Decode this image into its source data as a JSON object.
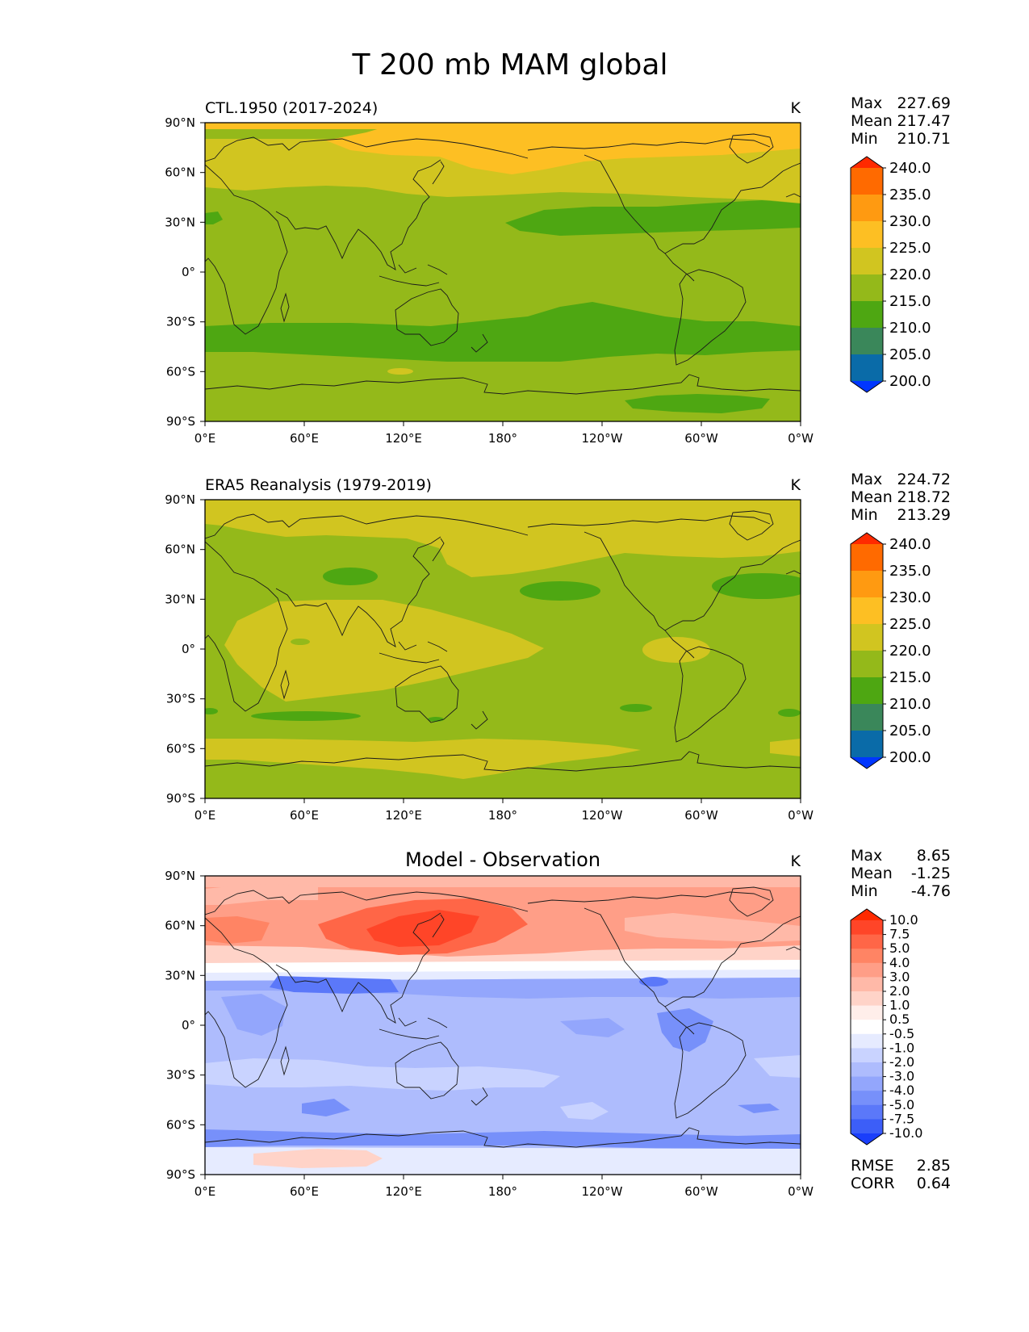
{
  "figure": {
    "title": "T 200 mb MAM global"
  },
  "axes": {
    "lat_labels": [
      "90°N",
      "60°N",
      "30°N",
      "0°",
      "30°S",
      "60°S",
      "90°S"
    ],
    "lon_labels": [
      "0°E",
      "60°E",
      "120°E",
      "180°",
      "120°W",
      "60°W",
      "0°W"
    ]
  },
  "panels": [
    {
      "id": "model",
      "title": "CTL.1950 (2017-2024)",
      "title_position": "left",
      "units": "K",
      "stats": [
        {
          "label": "Max",
          "value": "227.69"
        },
        {
          "label": "Mean",
          "value": "217.47"
        },
        {
          "label": "Min",
          "value": "210.71"
        }
      ],
      "colorbar": {
        "labels": [
          "240.0",
          "235.0",
          "230.0",
          "225.0",
          "220.0",
          "215.0",
          "210.0",
          "205.0",
          "200.0"
        ],
        "colors": [
          "#ff2a00",
          "#ff6a00",
          "#ff9a11",
          "#fdbf23",
          "#d1c520",
          "#94b91a",
          "#4ea712",
          "#3a875a",
          "#0a6ba8",
          "#0036ff"
        ],
        "extend": "both"
      },
      "bottom_stats": []
    },
    {
      "id": "obs",
      "title": "ERA5 Reanalysis (1979-2019)",
      "title_position": "left",
      "units": "K",
      "stats": [
        {
          "label": "Max",
          "value": "224.72"
        },
        {
          "label": "Mean",
          "value": "218.72"
        },
        {
          "label": "Min",
          "value": "213.29"
        }
      ],
      "colorbar": {
        "labels": [
          "240.0",
          "235.0",
          "230.0",
          "225.0",
          "220.0",
          "215.0",
          "210.0",
          "205.0",
          "200.0"
        ],
        "colors": [
          "#ff2a00",
          "#ff6a00",
          "#ff9a11",
          "#fdbf23",
          "#d1c520",
          "#94b91a",
          "#4ea712",
          "#3a875a",
          "#0a6ba8",
          "#0036ff"
        ],
        "extend": "both"
      },
      "bottom_stats": []
    },
    {
      "id": "diff",
      "title": "Model - Observation",
      "title_position": "center",
      "units": "K",
      "stats": [
        {
          "label": "Max",
          "value": "8.65"
        },
        {
          "label": "Mean",
          "value": "-1.25"
        },
        {
          "label": "Min",
          "value": "-4.76"
        }
      ],
      "colorbar": {
        "labels": [
          "10.0",
          "7.5",
          "5.0",
          "4.0",
          "3.0",
          "2.0",
          "1.0",
          "0.5",
          "-0.5",
          "-1.0",
          "-2.0",
          "-3.0",
          "-4.0",
          "-5.0",
          "-7.5",
          "-10.0"
        ],
        "colors": [
          "#ff2a00",
          "#ff4528",
          "#ff6647",
          "#ff8464",
          "#ff9e87",
          "#ffb9a8",
          "#ffd3c8",
          "#ffeeea",
          "#ffffff",
          "#e6ebff",
          "#c9d3ff",
          "#aebcfd",
          "#93a6fc",
          "#7790fa",
          "#5b78f9",
          "#3c5ef8",
          "#1a3efb"
        ],
        "extend": "both"
      },
      "bottom_stats": [
        {
          "label": "RMSE",
          "value": "2.85"
        },
        {
          "label": "CORR",
          "value": "0.64"
        }
      ]
    }
  ]
}
